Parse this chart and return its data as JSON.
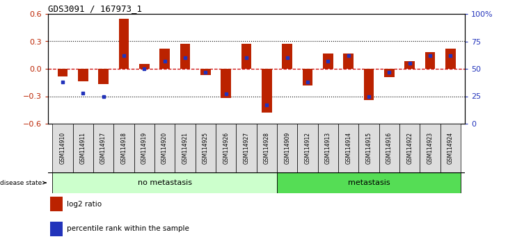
{
  "title": "GDS3091 / 167973_1",
  "samples": [
    "GSM114910",
    "GSM114911",
    "GSM114917",
    "GSM114918",
    "GSM114919",
    "GSM114920",
    "GSM114921",
    "GSM114925",
    "GSM114926",
    "GSM114927",
    "GSM114928",
    "GSM114909",
    "GSM114912",
    "GSM114913",
    "GSM114914",
    "GSM114915",
    "GSM114916",
    "GSM114922",
    "GSM114923",
    "GSM114924"
  ],
  "log2_ratio": [
    -0.08,
    -0.14,
    -0.17,
    0.55,
    0.05,
    0.22,
    0.27,
    -0.07,
    -0.32,
    0.27,
    -0.48,
    0.27,
    -0.18,
    0.17,
    0.17,
    -0.34,
    -0.09,
    0.08,
    0.18,
    0.22
  ],
  "percentile": [
    38,
    28,
    25,
    62,
    50,
    57,
    60,
    47,
    27,
    60,
    17,
    60,
    38,
    57,
    62,
    25,
    47,
    55,
    62,
    62
  ],
  "no_metastasis_count": 11,
  "metastasis_count": 9,
  "bar_color": "#bb2200",
  "dot_color": "#2233bb",
  "ylim_left": [
    -0.6,
    0.6
  ],
  "ylim_right": [
    0,
    100
  ],
  "yticks_left": [
    -0.6,
    -0.3,
    0.0,
    0.3,
    0.6
  ],
  "yticks_right": [
    0,
    25,
    50,
    75,
    100
  ],
  "ytick_labels_right": [
    "0",
    "25",
    "50",
    "75",
    "100%"
  ],
  "no_metastasis_color": "#ccffcc",
  "metastasis_color": "#55dd55",
  "zero_line_color": "#cc0000",
  "grid_color": "black",
  "bar_width": 0.5
}
